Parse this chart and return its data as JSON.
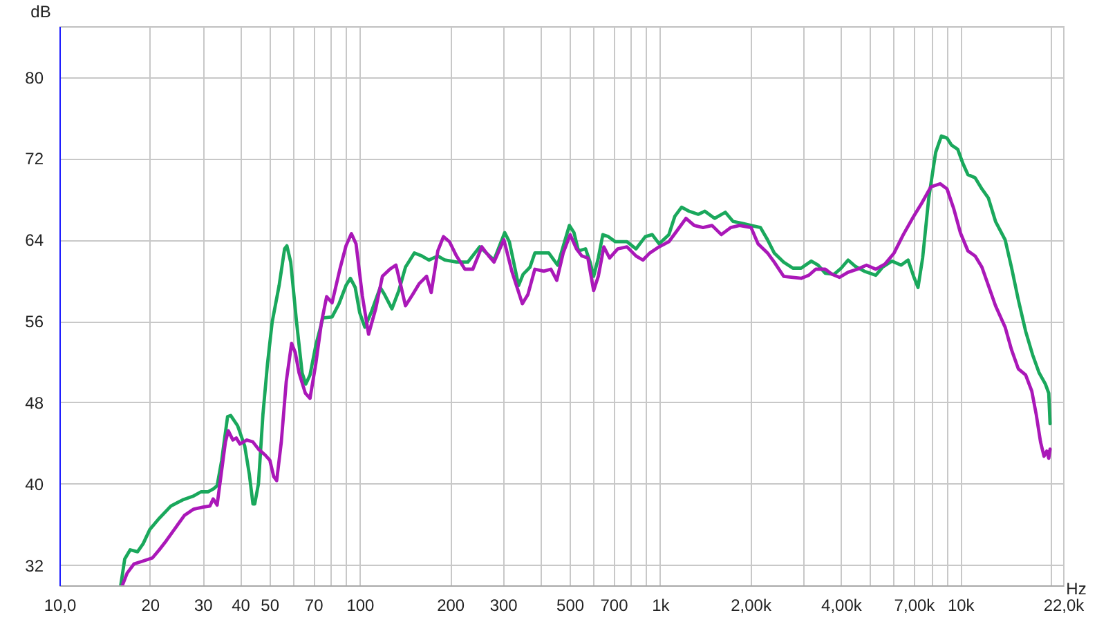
{
  "chart_data": {
    "type": "line",
    "xlabel": "Hz",
    "ylabel": "dB",
    "log": "x",
    "grid": true,
    "xlim": [
      10,
      22000
    ],
    "ylim": [
      30,
      85
    ],
    "xticks": [
      {
        "value": 10,
        "label": "10,0"
      },
      20,
      30,
      40,
      50,
      {
        "value": 60,
        "label": null
      },
      70,
      {
        "value": 80,
        "label": null
      },
      {
        "value": 90,
        "label": null
      },
      100,
      200,
      300,
      {
        "value": 400,
        "label": null
      },
      500,
      {
        "value": 600,
        "label": null
      },
      700,
      {
        "value": 800,
        "label": null
      },
      {
        "value": 900,
        "label": null
      },
      {
        "value": 1000,
        "label": "1k"
      },
      {
        "value": 2000,
        "label": "2,00k"
      },
      {
        "value": 3000,
        "label": null
      },
      {
        "value": 4000,
        "label": "4,00k"
      },
      {
        "value": 5000,
        "label": null
      },
      {
        "value": 6000,
        "label": null
      },
      {
        "value": 7000,
        "label": "7,00k"
      },
      {
        "value": 8000,
        "label": null
      },
      {
        "value": 9000,
        "label": null
      },
      {
        "value": 10000,
        "label": "10k"
      },
      {
        "value": 20000,
        "label": null
      },
      {
        "value": 22000,
        "label": "22,0k"
      }
    ],
    "yticks": [
      32,
      40,
      48,
      56,
      64,
      72,
      80
    ],
    "series": [
      {
        "color": "#1aa85c",
        "x": [
          16.0,
          16.5,
          17.2,
          18.2,
          19.0,
          20.0,
          21.5,
          23.5,
          25.7,
          28.0,
          29.6,
          31.2,
          32.6,
          33.5,
          34.7,
          36.3,
          37.2,
          39.2,
          41.4,
          42.9,
          44.1,
          44.7,
          46.0,
          47.6,
          49.3,
          51.1,
          53.9,
          56.2,
          57.2,
          58.9,
          61.6,
          64.3,
          66.1,
          68.3,
          71.4,
          75.4,
          80.9,
          85.3,
          90.0,
          93.1,
          96.6,
          100,
          104,
          109,
          117,
          121,
          128,
          135,
          142,
          152,
          161,
          170,
          182,
          192,
          210,
          229,
          251,
          264,
          280,
          304,
          315,
          338,
          350,
          369,
          383,
          426,
          456,
          481,
          499,
          517,
          535,
          565,
          585,
          601,
          623,
          645,
          673,
          710,
          776,
          832,
          893,
          942,
          993,
          1070,
          1120,
          1180,
          1250,
          1340,
          1410,
          1520,
          1650,
          1750,
          1880,
          2010,
          2160,
          2280,
          2400,
          2580,
          2770,
          2950,
          3190,
          3360,
          3550,
          3800,
          4010,
          4230,
          4460,
          4790,
          5230,
          5510,
          5920,
          6350,
          6700,
          6990,
          7230,
          7490,
          7850,
          8280,
          8650,
          9030,
          9350,
          9800,
          10200,
          10600,
          11200,
          11800,
          12400,
          13100,
          14100,
          14800,
          15600,
          16500,
          17400,
          18300,
          19200,
          19700,
          19900
        ],
        "values": [
          30,
          32.6,
          33.5,
          33.3,
          34.1,
          35.5,
          36.6,
          37.8,
          38.4,
          38.8,
          39.2,
          39.2,
          39.5,
          39.8,
          42.3,
          46.6,
          46.7,
          45.7,
          43.7,
          40.9,
          38.0,
          38.0,
          40.0,
          46.8,
          51.8,
          55.9,
          59.5,
          63.1,
          63.4,
          61.8,
          55.9,
          50.9,
          49.8,
          50.7,
          53.6,
          56.3,
          56.4,
          57.7,
          59.5,
          60.2,
          59.3,
          56.8,
          55.4,
          56.8,
          59.3,
          58.6,
          57.2,
          59.0,
          61.3,
          62.7,
          62.4,
          62.0,
          62.4,
          62.0,
          61.8,
          61.8,
          63.3,
          62.7,
          62.0,
          64.7,
          63.8,
          59.5,
          60.6,
          61.3,
          62.7,
          62.7,
          61.5,
          63.8,
          65.4,
          64.7,
          62.9,
          63.1,
          61.8,
          60.4,
          62.2,
          64.5,
          64.3,
          63.8,
          63.8,
          63.1,
          64.3,
          64.5,
          63.6,
          64.5,
          66.3,
          67.2,
          66.8,
          66.5,
          66.8,
          66.1,
          66.7,
          65.8,
          65.6,
          65.4,
          65.2,
          64.0,
          62.7,
          61.8,
          61.2,
          61.2,
          61.9,
          61.5,
          60.7,
          60.6,
          61.2,
          62.0,
          61.4,
          60.9,
          60.5,
          61.3,
          61.9,
          61.5,
          62.0,
          60.4,
          59.3,
          62.2,
          68.1,
          72.6,
          74.2,
          74.0,
          73.3,
          72.9,
          71.5,
          70.4,
          70.1,
          69.0,
          68.1,
          65.8,
          64.0,
          61.3,
          58.1,
          55.0,
          52.7,
          50.9,
          49.8,
          48.9,
          45.9
        ]
      },
      {
        "color": "#aa18b8",
        "x": [
          16.2,
          16.8,
          17.7,
          19.0,
          20.4,
          21.5,
          22.7,
          24.4,
          26.1,
          28.0,
          30.1,
          31.7,
          32.5,
          33.5,
          34.4,
          35.7,
          36.5,
          37.8,
          38.8,
          39.9,
          42.1,
          44.1,
          46.0,
          48.5,
          50.2,
          51.7,
          52.9,
          54.8,
          56.9,
          59.3,
          61.0,
          62.8,
          65.9,
          68.3,
          71.4,
          74.6,
          77.6,
          80.9,
          86.2,
          90.0,
          93.8,
          97.2,
          102,
          107,
          113,
          119,
          126,
          132,
          137,
          142,
          150,
          158,
          167,
          173,
          182,
          190,
          199,
          210,
          224,
          238,
          255,
          269,
          280,
          302,
          321,
          348,
          363,
          383,
          410,
          433,
          453,
          476,
          502,
          527,
          549,
          575,
          601,
          623,
          650,
          679,
          723,
          776,
          832,
          877,
          925,
          993,
          1070,
          1140,
          1220,
          1300,
          1390,
          1490,
          1600,
          1720,
          1840,
          2010,
          2120,
          2280,
          2400,
          2580,
          2770,
          2950,
          3130,
          3300,
          3550,
          3740,
          3960,
          4230,
          4540,
          4870,
          5230,
          5610,
          6020,
          6460,
          6930,
          7440,
          7980,
          8570,
          9030,
          9520,
          10000,
          10600,
          11200,
          11800,
          12400,
          13100,
          14100,
          14800,
          15600,
          16500,
          17300,
          17900,
          18500,
          19000,
          19400,
          19700,
          19900
        ],
        "values": [
          30,
          31.2,
          32.1,
          32.4,
          32.7,
          33.5,
          34.4,
          35.7,
          36.9,
          37.5,
          37.7,
          37.8,
          38.5,
          37.9,
          40.5,
          44.1,
          45.2,
          44.3,
          44.5,
          43.9,
          44.3,
          44.1,
          43.4,
          42.8,
          42.3,
          40.7,
          40.3,
          44.1,
          50.0,
          53.8,
          52.9,
          50.9,
          48.9,
          48.4,
          51.8,
          55.9,
          58.4,
          57.8,
          61.3,
          63.4,
          64.6,
          63.6,
          58.5,
          54.7,
          57.2,
          60.4,
          61.1,
          61.5,
          59.5,
          57.5,
          58.6,
          59.7,
          60.4,
          58.8,
          62.9,
          64.3,
          63.8,
          62.4,
          61.1,
          61.1,
          63.3,
          62.4,
          61.8,
          64.0,
          60.9,
          57.7,
          58.6,
          61.1,
          60.9,
          61.1,
          60.0,
          62.7,
          64.5,
          63.1,
          62.4,
          62.2,
          59.0,
          60.4,
          63.3,
          62.2,
          63.1,
          63.3,
          62.4,
          62.0,
          62.7,
          63.3,
          63.8,
          64.9,
          66.1,
          65.4,
          65.2,
          65.4,
          64.5,
          65.2,
          65.4,
          65.2,
          63.6,
          62.7,
          61.8,
          60.4,
          60.3,
          60.2,
          60.5,
          61.1,
          61.1,
          60.6,
          60.3,
          60.8,
          61.1,
          61.5,
          61.1,
          61.6,
          62.7,
          64.5,
          66.1,
          67.6,
          69.2,
          69.5,
          69.0,
          67.0,
          64.7,
          62.9,
          62.4,
          61.3,
          59.5,
          57.5,
          55.4,
          53.2,
          51.3,
          50.7,
          49.1,
          46.8,
          44.1,
          42.7,
          43.2,
          42.5,
          43.4
        ]
      }
    ]
  }
}
